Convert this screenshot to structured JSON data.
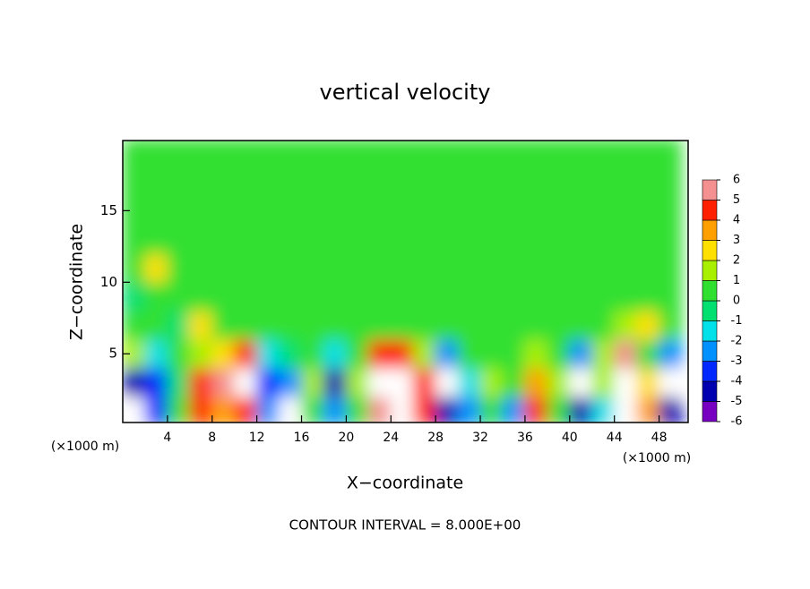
{
  "chart_data": {
    "type": "heatmap",
    "title": "vertical velocity",
    "x_label": "X−coordinate",
    "y_label": "Z−coordinate",
    "unit_label": "(×1000 m)",
    "footer": "CONTOUR INTERVAL = 8.000E+00",
    "x": [
      1,
      3,
      5,
      7,
      9,
      11,
      13,
      15,
      17,
      19,
      21,
      23,
      25,
      27,
      29,
      31,
      33,
      35,
      37,
      39,
      41,
      43,
      45,
      47,
      49
    ],
    "y": [
      1,
      3,
      5,
      7,
      9,
      11,
      13,
      15,
      17,
      19
    ],
    "values": [
      [
        -8,
        -4,
        0,
        4,
        3,
        4,
        -3,
        -8,
        0,
        -3,
        0,
        5,
        10,
        4,
        -5,
        -3,
        0,
        -3,
        4,
        0,
        -5,
        -2,
        10,
        3,
        -5
      ],
      [
        -5,
        -4,
        -1,
        4,
        5,
        8,
        -4,
        -3,
        1,
        -5,
        1,
        9,
        10,
        4,
        -7,
        -2,
        1,
        0,
        3,
        1,
        -7,
        1,
        10,
        2,
        -7
      ],
      [
        1,
        -2,
        0,
        1,
        2,
        4,
        -2,
        -1,
        0,
        -2,
        0,
        4,
        4,
        1,
        -3,
        0,
        0,
        0,
        1,
        0,
        -3,
        1,
        5,
        0,
        -3
      ],
      [
        0,
        0,
        -1,
        2,
        0,
        0,
        0,
        0,
        0,
        0,
        0,
        0,
        0,
        0,
        0,
        0,
        0,
        0,
        0,
        0,
        0,
        0,
        1,
        2,
        0
      ],
      [
        -1,
        0,
        0,
        0,
        0,
        0,
        0,
        0,
        0,
        0,
        0,
        0,
        0,
        0,
        0,
        0,
        0,
        0,
        0,
        0,
        0,
        0,
        0,
        0,
        0
      ],
      [
        0,
        2,
        0,
        0,
        0,
        0,
        0,
        0,
        0,
        0,
        0,
        0,
        0,
        0,
        0,
        0,
        0,
        0,
        0,
        0,
        0,
        0,
        0,
        0,
        0
      ],
      [
        0,
        0,
        0,
        0,
        0,
        0,
        0,
        0,
        0,
        0,
        0,
        0,
        0,
        0,
        0,
        0,
        0,
        0,
        0,
        0,
        0,
        0,
        0,
        0,
        0
      ],
      [
        0,
        0,
        0,
        0,
        0,
        0,
        0,
        0,
        0,
        0,
        0,
        0,
        0,
        0,
        0,
        0,
        0,
        0,
        0,
        0,
        0,
        0,
        0,
        0,
        0
      ],
      [
        0,
        0,
        0,
        0,
        0,
        0,
        0,
        0,
        0,
        0,
        0,
        0,
        0,
        0,
        0,
        0,
        0,
        0,
        0,
        0,
        0,
        0,
        0,
        0,
        0
      ],
      [
        0,
        0,
        0,
        0,
        0,
        0,
        0,
        0,
        0,
        0,
        0,
        0,
        0,
        0,
        0,
        0,
        0,
        0,
        0,
        0,
        0,
        0,
        0,
        0,
        0
      ]
    ],
    "xlim": [
      0,
      50.6
    ],
    "ylim": [
      0.2,
      19.9
    ],
    "xticks": [
      4,
      8,
      12,
      16,
      20,
      24,
      28,
      32,
      36,
      40,
      44,
      48
    ],
    "yticks": [
      5,
      10,
      15
    ],
    "clim": [
      -6,
      6
    ],
    "cticks": [
      -6,
      -5,
      -4,
      -3,
      -2,
      -1,
      0,
      1,
      2,
      3,
      4,
      5,
      6
    ],
    "colors": [
      "#7800c0",
      "#0000b0",
      "#0028ff",
      "#0090ff",
      "#00e0e8",
      "#00e070",
      "#30e030",
      "#a8f000",
      "#ffe000",
      "#ffa000",
      "#ff2000",
      "#f49090"
    ],
    "over_color": "#ffffff"
  }
}
